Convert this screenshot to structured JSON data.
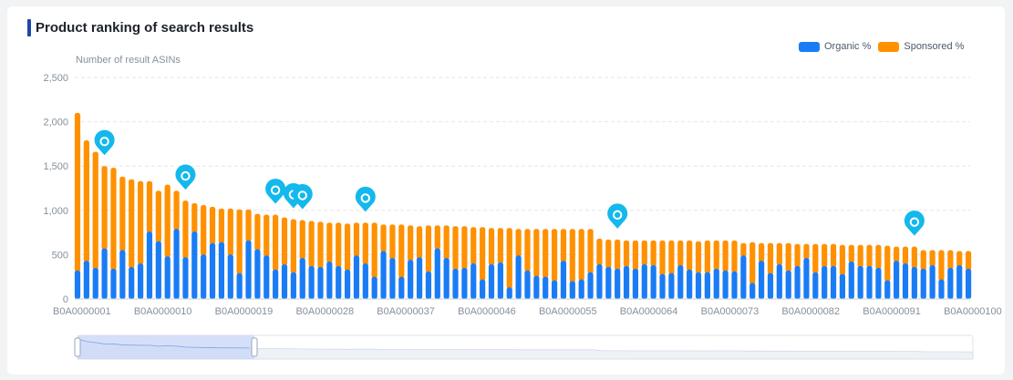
{
  "title": "Product ranking of search results",
  "legend": [
    {
      "label": "Organic %",
      "color": "#1a7cf5"
    },
    {
      "label": "Sponsored %",
      "color": "#ff9100"
    }
  ],
  "chart_data": {
    "type": "bar",
    "stacked": true,
    "title": "Product ranking of search results",
    "ylabel": "Number of result ASINs",
    "ylim": [
      0,
      2500
    ],
    "yticks": [
      "0",
      "500",
      "1,000",
      "1,500",
      "2,000",
      "2,500"
    ],
    "xticks": [
      "B0A0000001",
      "B0A0000010",
      "B0A0000019",
      "B0A0000028",
      "B0A0000037",
      "B0A0000046",
      "B0A0000055",
      "B0A0000064",
      "B0A0000073",
      "B0A0000082",
      "B0A0000091",
      "B0A0000100"
    ],
    "grid": true,
    "legend_position": "top-right",
    "markers_at": [
      "B0A0000004",
      "B0A0000013",
      "B0A0000023",
      "B0A0000025",
      "B0A0000026",
      "B0A0000033",
      "B0A0000061",
      "B0A0000094"
    ],
    "series": [
      {
        "name": "Organic %",
        "color": "#1a7cf5",
        "values": [
          320,
          430,
          350,
          570,
          340,
          550,
          360,
          400,
          760,
          650,
          480,
          790,
          470,
          760,
          500,
          630,
          640,
          500,
          290,
          660,
          560,
          490,
          330,
          390,
          300,
          460,
          370,
          360,
          420,
          370,
          330,
          490,
          400,
          250,
          540,
          460,
          250,
          440,
          470,
          310,
          570,
          460,
          340,
          350,
          400,
          220,
          390,
          410,
          130,
          490,
          320,
          260,
          250,
          210,
          430,
          200,
          220,
          300,
          390,
          360,
          340,
          370,
          340,
          390,
          380,
          280,
          290,
          380,
          330,
          300,
          300,
          340,
          320,
          310,
          490,
          180,
          430,
          290,
          390,
          320,
          370,
          460,
          300,
          370,
          370,
          280,
          420,
          370,
          370,
          350,
          210,
          430,
          400,
          360,
          340,
          380,
          220,
          350,
          380,
          340
        ]
      },
      {
        "name": "Sponsored %",
        "color": "#ff9100",
        "values": [
          1780,
          1360,
          1310,
          930,
          1140,
          830,
          990,
          930,
          570,
          570,
          810,
          430,
          640,
          320,
          560,
          410,
          380,
          520,
          720,
          350,
          400,
          460,
          620,
          530,
          600,
          430,
          510,
          510,
          440,
          490,
          520,
          370,
          460,
          610,
          300,
          380,
          590,
          390,
          350,
          520,
          260,
          370,
          480,
          470,
          410,
          590,
          410,
          390,
          670,
          300,
          470,
          530,
          540,
          580,
          360,
          590,
          570,
          490,
          290,
          310,
          330,
          290,
          320,
          270,
          280,
          380,
          370,
          280,
          330,
          350,
          360,
          320,
          340,
          350,
          140,
          460,
          200,
          340,
          240,
          310,
          250,
          160,
          320,
          250,
          250,
          330,
          190,
          240,
          240,
          260,
          390,
          160,
          190,
          230,
          210,
          170,
          330,
          200,
          160,
          200
        ]
      }
    ]
  }
}
